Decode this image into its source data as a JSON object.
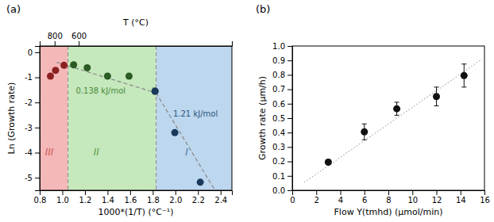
{
  "chart_data": [
    {
      "type": "scatter",
      "title": "(a)",
      "xlabel": "1000*(1/T) (°C⁻¹)",
      "ylabel": "Ln (Growth rate)",
      "x2label": "T (°C)",
      "xlim": [
        0.8,
        2.5
      ],
      "ylim": [
        -5.5,
        0.25
      ],
      "xticks": [
        0.8,
        {
          "value": 1,
          "label": "1.0"
        },
        1.2,
        1.4,
        1.6,
        1.8,
        {
          "value": 2,
          "label": "2.0"
        },
        2.2,
        2.4
      ],
      "yticks": [
        0,
        -1,
        -2,
        -3,
        -4,
        -5
      ],
      "x2lim": [
        0.8,
        2.5
      ],
      "x2ticks": [
        {
          "value": 0.931836,
          "label": "800"
        },
        {
          "value": 1.145279,
          "label": "600"
        }
      ],
      "regions": [
        {
          "xlim": [
            0.8,
            1.05
          ],
          "color": "#f5b8b8",
          "label": "III",
          "label_color": "#cc5555",
          "label_x": 0.885,
          "label_y": -4.0
        },
        {
          "xlim": [
            1.05,
            1.83
          ],
          "color": "#c5e8bc",
          "label": "II",
          "label_color": "#5a9a4a",
          "label_x": 1.3,
          "label_y": -4.0
        },
        {
          "xlim": [
            1.83,
            2.5
          ],
          "color": "#bdd7ee",
          "label": "I",
          "label_color": "#4a78aa",
          "label_x": 2.1,
          "label_y": -4.0
        }
      ],
      "vlines": [
        {
          "x": 1.05,
          "color": "#888888",
          "line_style": "dashed"
        },
        {
          "x": 1.83,
          "color": "#888888",
          "line_style": "dashed"
        }
      ],
      "series": [
        {
          "type": "line",
          "line_style": "dashed",
          "color": "#888888",
          "x": [
            0.95,
            1.85
          ],
          "values": [
            -0.4,
            -1.65
          ]
        },
        {
          "type": "line",
          "line_style": "dashed",
          "color": "#888888",
          "x": [
            1.8,
            2.35
          ],
          "values": [
            -1.4,
            -5.5
          ]
        },
        {
          "type": "scatter",
          "color": "#8b2020",
          "x": [
            0.895,
            0.94,
            1.015
          ],
          "values": [
            -0.95,
            -0.72,
            -0.52
          ]
        },
        {
          "type": "scatter",
          "color": "#2a5c24",
          "x": [
            1.1,
            1.22,
            1.4,
            1.59,
            1.82
          ],
          "values": [
            -0.5,
            -0.62,
            -0.95,
            -0.95,
            -1.55
          ]
        },
        {
          "type": "scatter",
          "color": "#1a3a5c",
          "x": [
            1.82,
            1.995,
            2.22
          ],
          "values": [
            -1.55,
            -3.2,
            -5.18
          ]
        }
      ],
      "annotations": [
        {
          "text": "0.138 kJ/mol",
          "x": 1.12,
          "y": -1.65,
          "color": "#4a8a3a"
        },
        {
          "text": "1.21 kJ/mol",
          "x": 1.98,
          "y": -2.55,
          "color": "#2a5580"
        }
      ]
    },
    {
      "type": "scatter",
      "title": "(b)",
      "xlabel": "Flow Y(tmhd) (μmol/min)",
      "ylabel": "Growth rate (μm/h)",
      "xlim": [
        0,
        16
      ],
      "ylim": [
        0.0,
        1.0
      ],
      "xticks": [
        0,
        2,
        4,
        6,
        8,
        10,
        12,
        14,
        16
      ],
      "yticks": [
        {
          "value": 0,
          "label": "0.0"
        },
        0.1,
        0.2,
        0.3,
        0.4,
        0.5,
        0.6,
        0.7,
        0.8,
        0.9,
        {
          "value": 1,
          "label": "1.0"
        }
      ],
      "series": [
        {
          "type": "line",
          "line_style": "dotted",
          "color": "#aaaaaa",
          "x": [
            1.0,
            15.8
          ],
          "values": [
            0.055,
            0.91
          ]
        },
        {
          "type": "scatter",
          "color": "#111111",
          "x": [
            3.0,
            6.0,
            8.7,
            12.0,
            14.3
          ],
          "values": [
            0.195,
            0.405,
            0.565,
            0.65,
            0.795
          ],
          "error": [
            0.015,
            0.055,
            0.045,
            0.065,
            0.08
          ]
        }
      ]
    }
  ]
}
